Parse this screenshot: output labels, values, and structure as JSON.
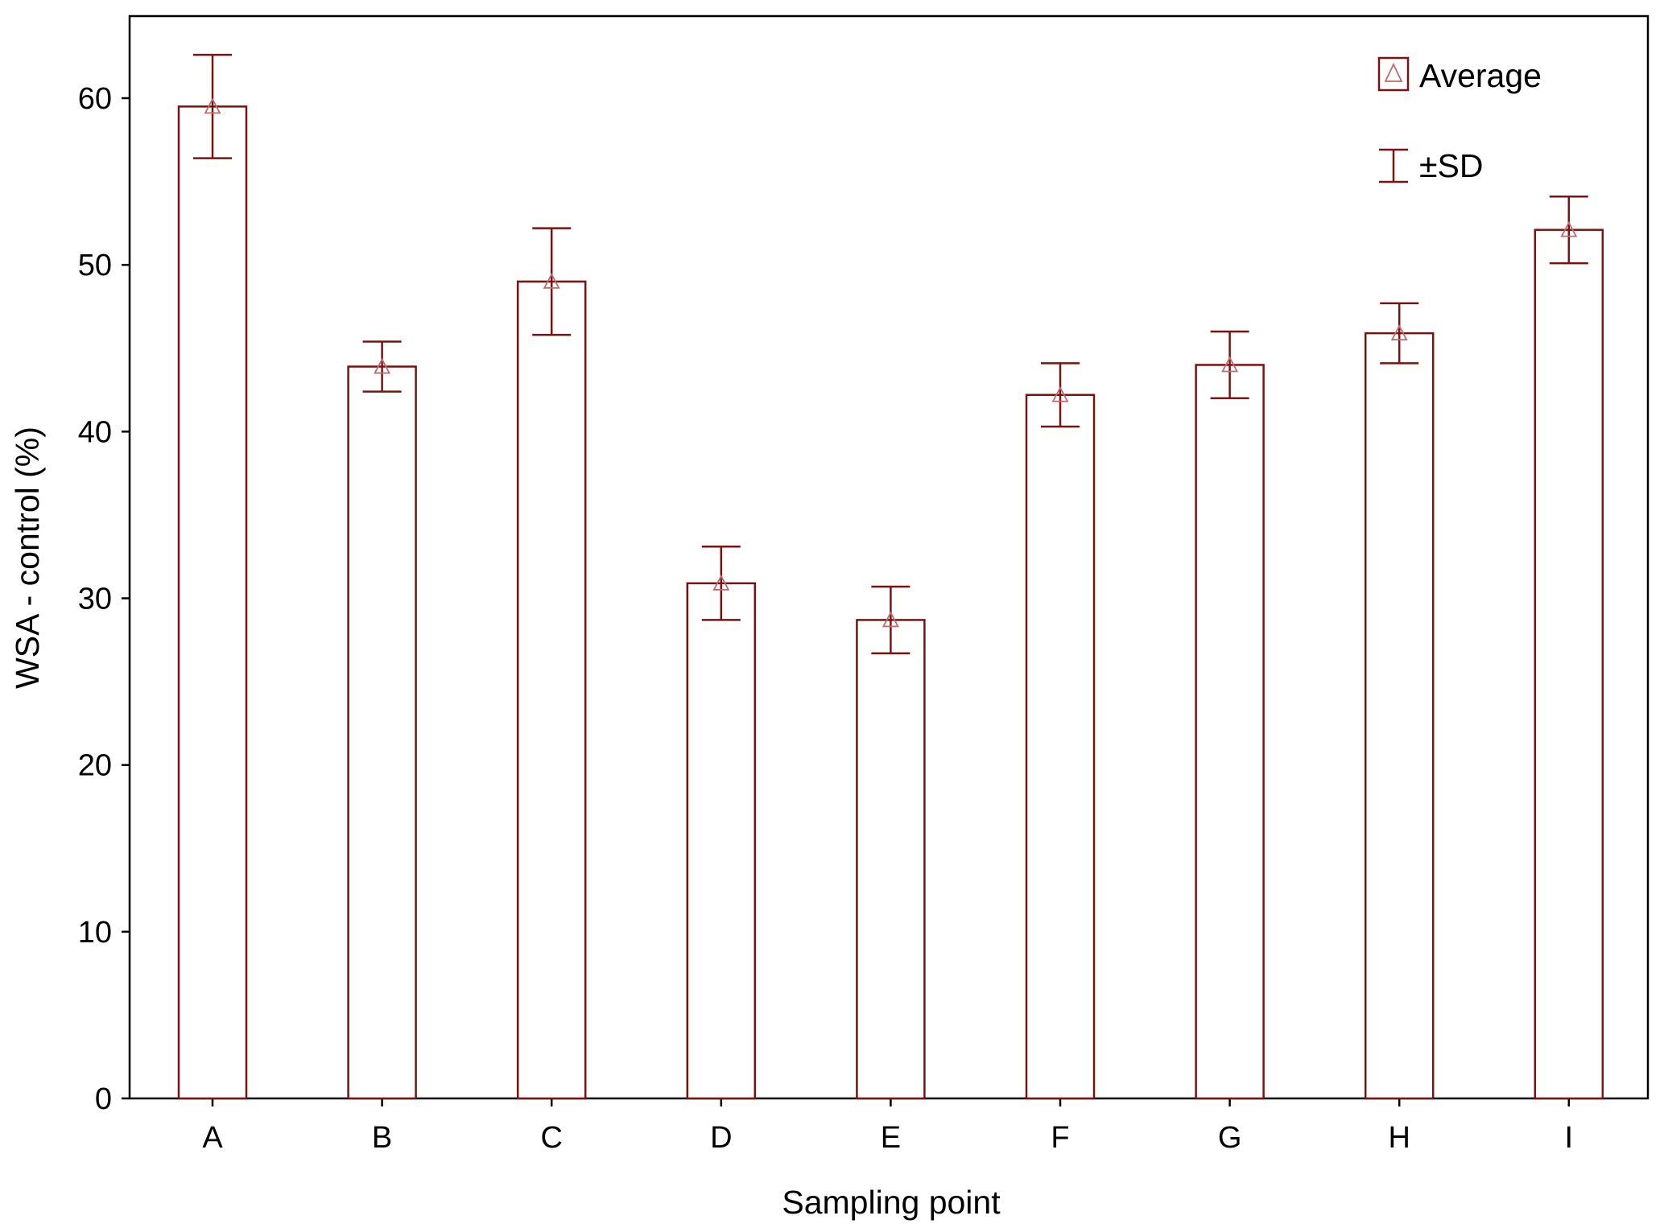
{
  "colors": {
    "bar_stroke": "#7b1212",
    "bar_fill": "#ffffff",
    "marker_stroke": "#c06b6b",
    "axis": "#000000",
    "background": "#ffffff"
  },
  "legend": {
    "average_label": "Average",
    "sd_label": "±SD",
    "placement": "top-right"
  },
  "chart_data": {
    "type": "bar",
    "xlabel": "Sampling point",
    "ylabel": "WSA - control (%)",
    "ylim": [
      0,
      65
    ],
    "yticks": [
      0,
      10,
      20,
      30,
      40,
      50,
      60
    ],
    "grid": false,
    "categories": [
      "A",
      "B",
      "C",
      "D",
      "E",
      "F",
      "G",
      "H",
      "I"
    ],
    "series": [
      {
        "name": "Average",
        "values": [
          59.5,
          43.9,
          49.0,
          30.9,
          28.7,
          42.2,
          44.0,
          45.9,
          52.1
        ],
        "sd": [
          3.1,
          1.5,
          3.2,
          2.2,
          2.0,
          1.9,
          2.0,
          1.8,
          2.0
        ]
      }
    ]
  }
}
